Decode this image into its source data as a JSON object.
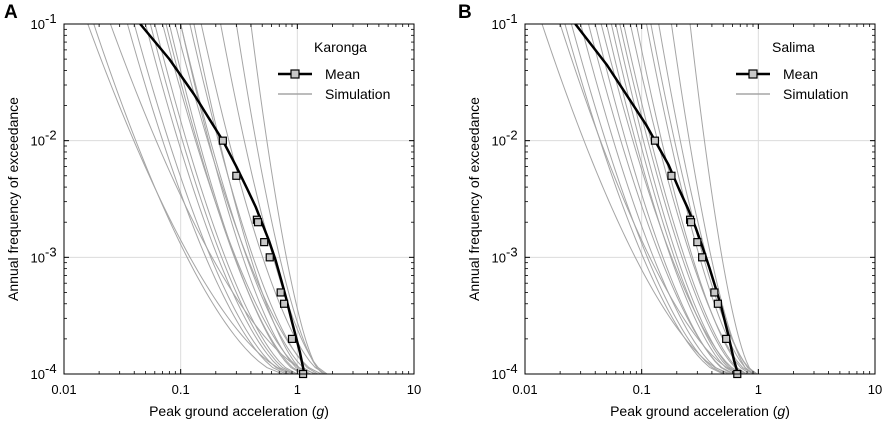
{
  "chart_data": [
    {
      "type": "line",
      "panel_label": "A",
      "site": "Karonga",
      "xlabel_text": "Peak ground acceleration (",
      "xlabel_var": "g",
      "xlabel_end": ")",
      "ylabel": "Annual frequency of exceedance",
      "x_scale": "log",
      "y_scale": "log",
      "xlim": [
        0.01,
        10
      ],
      "ylim": [
        0.0001,
        0.1
      ],
      "x_ticks": [
        0.01,
        0.1,
        1,
        10
      ],
      "x_tick_labels": [
        "0.01",
        "0.1",
        "1",
        "10"
      ],
      "y_ticks": [
        0.1,
        0.01,
        0.001,
        0.0001
      ],
      "y_tick_base": "10",
      "y_tick_exponents": [
        "-1",
        "-2",
        "-3",
        "-4"
      ],
      "grid": true,
      "legend": {
        "position": "top-right",
        "mean_label": "Mean",
        "sim_label": "Simulation"
      },
      "mean_curve": {
        "x": [
          0.045,
          0.08,
          0.13,
          0.2,
          0.23,
          0.3,
          0.37,
          0.44,
          0.5,
          0.57,
          0.65,
          0.73,
          0.8,
          0.9,
          1.05,
          1.15
        ],
        "y": [
          0.1,
          0.05,
          0.025,
          0.0125,
          0.01,
          0.006,
          0.0039,
          0.0027,
          0.00195,
          0.0014,
          0.00095,
          0.00063,
          0.00045,
          0.00028,
          0.000155,
          0.0001
        ]
      },
      "mean_markers": {
        "x": [
          0.23,
          0.3,
          0.45,
          0.46,
          0.52,
          0.58,
          0.72,
          0.77,
          0.9,
          1.12
        ],
        "y": [
          0.01,
          0.005,
          0.0021,
          0.002,
          0.00135,
          0.001,
          0.0005,
          0.0004,
          0.0002,
          0.0001
        ]
      },
      "simulations": [
        {
          "top": 0.05,
          "end": 0.9
        },
        {
          "top": 0.06,
          "end": 1.0
        },
        {
          "top": 0.08,
          "end": 1.1
        },
        {
          "top": 0.1,
          "end": 1.2
        },
        {
          "top": 0.07,
          "end": 1.3
        },
        {
          "top": 0.1,
          "end": 1.4
        },
        {
          "top": 0.04,
          "end": 0.85
        },
        {
          "top": 0.12,
          "end": 1.5
        },
        {
          "top": 0.09,
          "end": 1.6
        },
        {
          "top": 0.15,
          "end": 1.75
        },
        {
          "top": 0.22,
          "end": 1.8
        },
        {
          "top": 0.3,
          "end": 1.7
        },
        {
          "top": 0.035,
          "end": 0.8
        },
        {
          "top": 0.13,
          "end": 1.25
        },
        {
          "top": 0.055,
          "end": 0.95
        },
        {
          "top": 0.075,
          "end": 1.15
        },
        {
          "top": 0.016,
          "end": 0.95
        },
        {
          "top": 0.025,
          "end": 1.45
        },
        {
          "top": 0.018,
          "end": 0.75
        },
        {
          "top": 0.4,
          "end": 1.65
        }
      ]
    },
    {
      "type": "line",
      "panel_label": "B",
      "site": "Salima",
      "xlabel_text": "Peak ground acceleration (",
      "xlabel_var": "g",
      "xlabel_end": ")",
      "ylabel": "Annual frequency of exceedance",
      "x_scale": "log",
      "y_scale": "log",
      "xlim": [
        0.01,
        10
      ],
      "ylim": [
        0.0001,
        0.1
      ],
      "x_ticks": [
        0.01,
        0.1,
        1,
        10
      ],
      "x_tick_labels": [
        "0.01",
        "0.1",
        "1",
        "10"
      ],
      "y_ticks": [
        0.1,
        0.01,
        0.001,
        0.0001
      ],
      "y_tick_base": "10",
      "y_tick_exponents": [
        "-1",
        "-2",
        "-3",
        "-4"
      ],
      "grid": true,
      "legend": {
        "position": "top-right",
        "mean_label": "Mean",
        "sim_label": "Simulation"
      },
      "mean_curve": {
        "x": [
          0.027,
          0.05,
          0.08,
          0.11,
          0.13,
          0.17,
          0.21,
          0.25,
          0.29,
          0.33,
          0.38,
          0.43,
          0.48,
          0.55,
          0.62,
          0.67
        ],
        "y": [
          0.1,
          0.045,
          0.022,
          0.0135,
          0.01,
          0.0062,
          0.0038,
          0.0026,
          0.0018,
          0.00125,
          0.00082,
          0.00055,
          0.00038,
          0.00022,
          0.00013,
          0.0001
        ]
      },
      "mean_markers": {
        "x": [
          0.13,
          0.18,
          0.26,
          0.265,
          0.3,
          0.33,
          0.42,
          0.45,
          0.53,
          0.66
        ],
        "y": [
          0.01,
          0.005,
          0.0021,
          0.002,
          0.00135,
          0.001,
          0.0005,
          0.0004,
          0.0002,
          0.0001
        ]
      },
      "simulations": [
        {
          "top": 0.03,
          "end": 0.55
        },
        {
          "top": 0.04,
          "end": 0.6
        },
        {
          "top": 0.05,
          "end": 0.65
        },
        {
          "top": 0.06,
          "end": 0.7
        },
        {
          "top": 0.045,
          "end": 0.75
        },
        {
          "top": 0.07,
          "end": 0.8
        },
        {
          "top": 0.025,
          "end": 0.52
        },
        {
          "top": 0.09,
          "end": 0.85
        },
        {
          "top": 0.08,
          "end": 0.9
        },
        {
          "top": 0.11,
          "end": 0.92
        },
        {
          "top": 0.14,
          "end": 0.95
        },
        {
          "top": 0.18,
          "end": 0.88
        },
        {
          "top": 0.022,
          "end": 0.5
        },
        {
          "top": 0.055,
          "end": 0.68
        },
        {
          "top": 0.035,
          "end": 0.62
        },
        {
          "top": 0.065,
          "end": 0.78
        },
        {
          "top": 0.014,
          "end": 0.58
        },
        {
          "top": 0.02,
          "end": 0.72
        },
        {
          "top": 0.12,
          "end": 0.98
        },
        {
          "top": 0.26,
          "end": 0.93
        }
      ]
    }
  ]
}
